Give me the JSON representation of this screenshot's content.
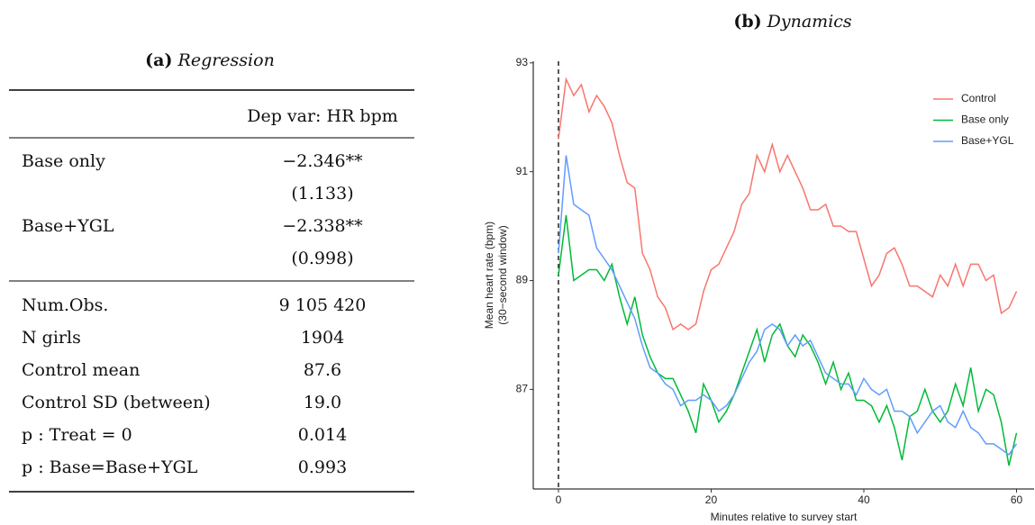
{
  "table": {
    "label": "(a)",
    "title": "Regression",
    "header": "Dep var: HR bpm",
    "coefficients": [
      {
        "name": "Base only",
        "estimate": "−2.346**",
        "se": "(1.133)"
      },
      {
        "name": "Base+YGL",
        "estimate": "−2.338**",
        "se": "(0.998)"
      }
    ],
    "stats": [
      [
        "Num.Obs.",
        "9 105 420"
      ],
      [
        "N girls",
        "1904"
      ],
      [
        "Control mean",
        "87.6"
      ],
      [
        "Control SD (between)",
        "19.0"
      ],
      [
        "p : Treat = 0",
        "0.014"
      ],
      [
        "p : Base=Base+YGL",
        "0.993"
      ]
    ]
  },
  "chart_data": {
    "type": "line",
    "label": "(b)",
    "title": "Dynamics",
    "xlabel": "Minutes relative to survey start",
    "ylabel": [
      "Mean heart rate (bpm)",
      "(30−second window)"
    ],
    "x": [
      0,
      1,
      2,
      3,
      4,
      5,
      6,
      7,
      8,
      9,
      10,
      11,
      12,
      13,
      14,
      15,
      16,
      17,
      18,
      19,
      20,
      21,
      22,
      23,
      24,
      25,
      26,
      27,
      28,
      29,
      30,
      31,
      32,
      33,
      34,
      35,
      36,
      37,
      38,
      39,
      40,
      41,
      42,
      43,
      44,
      45,
      46,
      47,
      48,
      49,
      50,
      51,
      52,
      53,
      54,
      55,
      56,
      57,
      58,
      59,
      60
    ],
    "series": [
      {
        "name": "Control",
        "color": "#F8766D",
        "values": [
          91.6,
          92.7,
          92.4,
          92.6,
          92.1,
          92.4,
          92.2,
          91.9,
          91.3,
          90.8,
          90.7,
          89.5,
          89.2,
          88.7,
          88.5,
          88.1,
          88.2,
          88.1,
          88.2,
          88.8,
          89.2,
          89.3,
          89.6,
          89.9,
          90.4,
          90.6,
          91.3,
          91.0,
          91.5,
          91.0,
          91.3,
          91.0,
          90.7,
          90.3,
          90.3,
          90.4,
          90.0,
          90.0,
          89.9,
          89.9,
          89.4,
          88.9,
          89.1,
          89.5,
          89.6,
          89.3,
          88.9,
          88.9,
          88.8,
          88.7,
          89.1,
          88.9,
          89.3,
          88.9,
          89.3,
          89.3,
          89.0,
          89.1,
          88.4,
          88.5,
          88.8
        ]
      },
      {
        "name": "Base only",
        "color": "#00BA38",
        "values": [
          89.1,
          90.2,
          89.0,
          89.1,
          89.2,
          89.2,
          89.0,
          89.3,
          88.7,
          88.2,
          88.7,
          88.0,
          87.6,
          87.3,
          87.2,
          87.2,
          86.9,
          86.6,
          86.2,
          87.1,
          86.8,
          86.4,
          86.6,
          86.9,
          87.3,
          87.7,
          88.1,
          87.5,
          88.0,
          88.2,
          87.8,
          87.6,
          88.0,
          87.8,
          87.5,
          87.1,
          87.5,
          87.0,
          87.3,
          86.8,
          86.8,
          86.7,
          86.4,
          86.7,
          86.3,
          85.7,
          86.5,
          86.6,
          87.0,
          86.6,
          86.4,
          86.6,
          87.1,
          86.7,
          87.4,
          86.6,
          87.0,
          86.9,
          86.4,
          85.6,
          86.2
        ]
      },
      {
        "name": "Base+YGL",
        "color": "#619CFF",
        "values": [
          89.5,
          91.3,
          90.4,
          90.3,
          90.2,
          89.6,
          89.4,
          89.2,
          88.9,
          88.6,
          88.3,
          87.8,
          87.4,
          87.3,
          87.1,
          87.0,
          86.7,
          86.8,
          86.8,
          86.9,
          86.8,
          86.6,
          86.7,
          86.9,
          87.2,
          87.5,
          87.7,
          88.1,
          88.2,
          88.1,
          87.8,
          88.0,
          87.8,
          87.9,
          87.6,
          87.3,
          87.2,
          87.1,
          87.1,
          86.9,
          87.2,
          87.0,
          86.9,
          87.0,
          86.6,
          86.6,
          86.5,
          86.2,
          86.4,
          86.6,
          86.7,
          86.4,
          86.3,
          86.6,
          86.3,
          86.2,
          86.0,
          86.0,
          85.9,
          85.8,
          86.0
        ]
      }
    ],
    "xlim": [
      -3.3,
      62.3
    ],
    "xticks": [
      0,
      20,
      40,
      60
    ],
    "ylim": [
      85.17,
      93.03
    ],
    "yticks": [
      87,
      89,
      91,
      93
    ],
    "vline": 0,
    "legend": "top-right",
    "grid": false
  }
}
